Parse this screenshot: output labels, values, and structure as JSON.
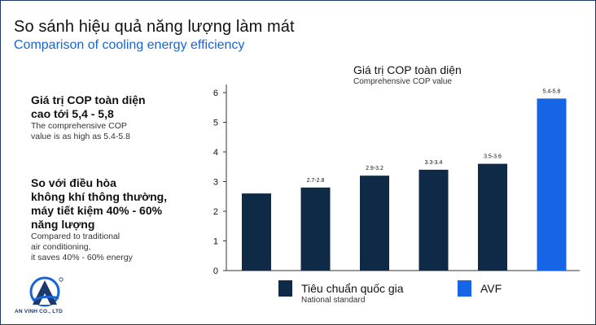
{
  "page": {
    "title": "So sánh hiệu quả năng lượng làm mát",
    "subtitle": "Comparison of cooling energy efficiency"
  },
  "left_panel": {
    "block1_vi": "Giá trị COP toàn diện\ncao tới 5,4 - 5,8",
    "block1_en": "The comprehensive COP\nvalue is as high as 5.4-5.8",
    "block2_vi": "So với điều hòa\nkhông khí thông thường,\nmáy tiết kiệm 40% - 60%\nnăng lượng",
    "block2_en": "Compared to traditional\nair conditioning,\nit saves 40% - 60% energy"
  },
  "logo": {
    "text": "AN VINH CO., LTD",
    "icon": "an-vinh-logo-icon"
  },
  "colors": {
    "national": "#0f2a47",
    "avf": "#1565e6",
    "accent": "#1565d8"
  },
  "chart_data": {
    "type": "bar",
    "title": "Giá trị COP toàn diện",
    "subtitle": "Comprehensive COP value",
    "ylim": [
      0,
      6
    ],
    "yticks": [
      0,
      1,
      2,
      3,
      4,
      5,
      6
    ],
    "grid": false,
    "values": [
      2.6,
      2.8,
      3.2,
      3.4,
      3.6,
      5.8
    ],
    "data_labels": [
      "",
      "2.7-2.8",
      "2.9-3.2",
      "3.3-3.4",
      "3.5-3.6",
      "5.4-5.8"
    ],
    "series_of_bar": [
      "national",
      "national",
      "national",
      "national",
      "national",
      "avf"
    ],
    "legend": [
      {
        "key": "national",
        "label": "Tiêu chuẩn quốc gia",
        "sublabel": "National standard"
      },
      {
        "key": "avf",
        "label": "AVF",
        "sublabel": ""
      }
    ]
  }
}
